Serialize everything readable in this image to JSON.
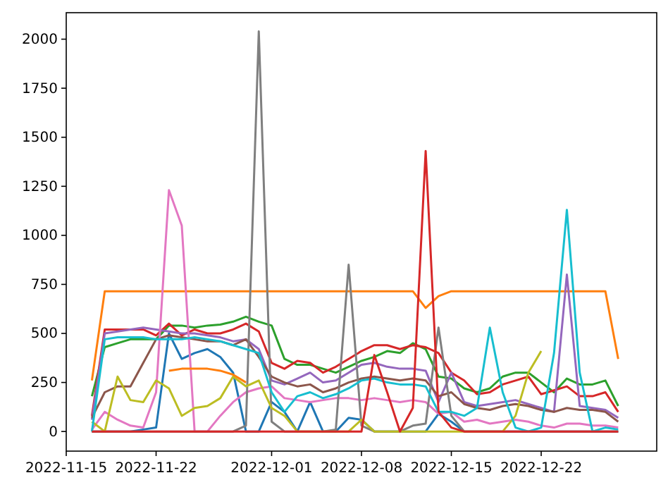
{
  "chart_data": {
    "type": "line",
    "x": [
      "2022-11-17",
      "2022-11-18",
      "2022-11-19",
      "2022-11-20",
      "2022-11-21",
      "2022-11-22",
      "2022-11-23",
      "2022-11-24",
      "2022-11-25",
      "2022-11-26",
      "2022-11-27",
      "2022-11-28",
      "2022-11-29",
      "2022-11-30",
      "2022-12-01",
      "2022-12-02",
      "2022-12-03",
      "2022-12-04",
      "2022-12-05",
      "2022-12-06",
      "2022-12-07",
      "2022-12-08",
      "2022-12-09",
      "2022-12-10",
      "2022-12-11",
      "2022-12-12",
      "2022-12-13",
      "2022-12-14",
      "2022-12-15",
      "2022-12-16",
      "2022-12-17",
      "2022-12-18",
      "2022-12-19",
      "2022-12-20",
      "2022-12-21",
      "2022-12-22",
      "2022-12-23",
      "2022-12-24",
      "2022-12-25",
      "2022-12-26",
      "2022-12-27",
      "2022-12-28"
    ],
    "xlim": [
      "2022-11-15",
      "2022-12-31"
    ],
    "xticks": [
      "2022-11-15",
      "2022-11-22",
      "2022-12-01",
      "2022-12-08",
      "2022-12-15",
      "2022-12-22"
    ],
    "ylim": [
      -100,
      2135
    ],
    "yticks": [
      0,
      250,
      500,
      750,
      1000,
      1250,
      1500,
      1750,
      2000
    ],
    "series": [
      {
        "color": "#1f77b4",
        "values": [
          0,
          0,
          0,
          0,
          10,
          20,
          500,
          370,
          400,
          420,
          380,
          300,
          0,
          0,
          150,
          100,
          0,
          150,
          0,
          0,
          70,
          60,
          0,
          0,
          0,
          0,
          0,
          90,
          50,
          0,
          0,
          0,
          0,
          0,
          0,
          0,
          0,
          0,
          0,
          0,
          0,
          0
        ]
      },
      {
        "color": "#ff7f0e",
        "values": [
          260,
          715,
          715,
          715,
          715,
          715,
          715,
          715,
          715,
          715,
          715,
          715,
          715,
          715,
          715,
          715,
          715,
          715,
          715,
          715,
          715,
          715,
          715,
          715,
          715,
          715,
          630,
          690,
          715,
          715,
          715,
          715,
          715,
          715,
          715,
          715,
          715,
          715,
          715,
          715,
          715,
          370
        ]
      },
      {
        "color": "#2ca02c",
        "values": [
          180,
          430,
          450,
          470,
          470,
          470,
          540,
          540,
          530,
          540,
          545,
          560,
          585,
          560,
          540,
          370,
          340,
          340,
          320,
          300,
          330,
          360,
          380,
          410,
          400,
          450,
          420,
          280,
          270,
          220,
          200,
          220,
          280,
          300,
          300,
          250,
          200,
          270,
          240,
          240,
          260,
          130
        ]
      },
      {
        "color": "#d62728",
        "values": [
          80,
          520,
          520,
          520,
          520,
          490,
          550,
          490,
          520,
          500,
          500,
          520,
          550,
          510,
          350,
          320,
          360,
          350,
          300,
          330,
          370,
          410,
          440,
          440,
          420,
          440,
          430,
          400,
          300,
          260,
          190,
          200,
          240,
          260,
          280,
          190,
          210,
          230,
          180,
          180,
          200,
          100
        ]
      },
      {
        "color": "#9467bd",
        "values": [
          60,
          500,
          510,
          520,
          530,
          520,
          510,
          500,
          500,
          490,
          480,
          460,
          470,
          420,
          260,
          240,
          270,
          300,
          250,
          260,
          300,
          340,
          350,
          330,
          320,
          320,
          310,
          150,
          300,
          150,
          130,
          140,
          150,
          160,
          140,
          120,
          100,
          800,
          130,
          120,
          110,
          70
        ]
      },
      {
        "color": "#8c564b",
        "values": [
          70,
          200,
          230,
          230,
          350,
          470,
          490,
          480,
          470,
          460,
          460,
          440,
          470,
          380,
          280,
          250,
          230,
          240,
          200,
          220,
          250,
          270,
          280,
          270,
          260,
          270,
          260,
          180,
          200,
          140,
          120,
          110,
          130,
          140,
          130,
          110,
          100,
          120,
          110,
          110,
          100,
          50
        ]
      },
      {
        "color": "#e377c2",
        "values": [
          10,
          100,
          60,
          30,
          20,
          200,
          1230,
          1050,
          0,
          0,
          80,
          150,
          200,
          220,
          230,
          170,
          160,
          150,
          160,
          170,
          170,
          160,
          170,
          160,
          150,
          160,
          150,
          90,
          100,
          50,
          60,
          40,
          50,
          60,
          50,
          30,
          20,
          40,
          40,
          30,
          30,
          20
        ]
      },
      {
        "color": "#7f7f7f",
        "values": [
          0,
          0,
          0,
          0,
          0,
          0,
          0,
          0,
          0,
          0,
          0,
          0,
          30,
          2040,
          50,
          0,
          0,
          0,
          0,
          10,
          850,
          30,
          0,
          0,
          0,
          30,
          40,
          530,
          80,
          0,
          0,
          0,
          0,
          0,
          0,
          0,
          0,
          0,
          0,
          0,
          0,
          0
        ]
      },
      {
        "color": "#bcbd22",
        "values": [
          50,
          0,
          280,
          160,
          150,
          260,
          220,
          80,
          120,
          130,
          170,
          280,
          230,
          260,
          120,
          80,
          0,
          0,
          0,
          0,
          0,
          60,
          0,
          0,
          0,
          0,
          0,
          0,
          0,
          0,
          0,
          0,
          0,
          80,
          300,
          410,
          null,
          null,
          null,
          null,
          null,
          null
        ]
      },
      {
        "color": "#17becf",
        "values": [
          0,
          470,
          480,
          480,
          480,
          470,
          470,
          470,
          480,
          470,
          460,
          440,
          420,
          400,
          200,
          100,
          180,
          200,
          170,
          190,
          220,
          260,
          270,
          250,
          240,
          240,
          230,
          100,
          100,
          80,
          120,
          530,
          200,
          20,
          0,
          20,
          400,
          1130,
          300,
          0,
          20,
          10
        ]
      },
      {
        "color": "#ff7f0e",
        "values": [
          null,
          null,
          null,
          null,
          null,
          null,
          310,
          320,
          320,
          320,
          310,
          290,
          250,
          null,
          null,
          null,
          null,
          null,
          null,
          null,
          null,
          null,
          null,
          null,
          null,
          null,
          null,
          null,
          null,
          null,
          null,
          null,
          null,
          null,
          null,
          null,
          null,
          null,
          null,
          null,
          null,
          null
        ]
      },
      {
        "color": "#d62728",
        "values": [
          0,
          0,
          0,
          0,
          0,
          0,
          0,
          0,
          0,
          0,
          0,
          0,
          0,
          0,
          0,
          0,
          0,
          0,
          0,
          0,
          0,
          0,
          390,
          200,
          0,
          120,
          1430,
          100,
          20,
          0,
          0,
          0,
          0,
          0,
          0,
          0,
          0,
          0,
          0,
          0,
          0,
          0
        ]
      }
    ]
  }
}
